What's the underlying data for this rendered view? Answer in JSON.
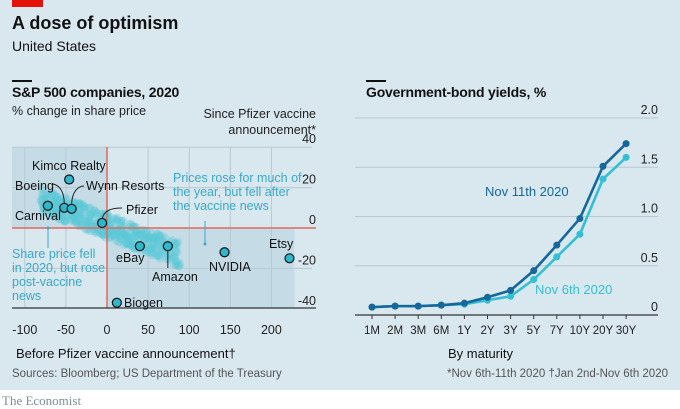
{
  "header": {
    "title": "A dose of optimism",
    "subtitle": "United States"
  },
  "footer": {
    "source": "Sources: Bloomberg; US Department of the Treasury",
    "footnote": "*Nov 6th-11th 2020   †Jan 2nd-Nov 6th 2020",
    "brand": "The Economist"
  },
  "colors": {
    "background": "#d9e7ef",
    "quadrant_shade": "#c5dce7",
    "cloud": "#5cc8d7",
    "highlight": "#2fb8cc",
    "zero_line": "#e0695e",
    "nov11": "#16679a",
    "nov6": "#34bfd2",
    "annotation": "#3aa9c7"
  },
  "chart_data": [
    {
      "type": "scatter",
      "title": "S&P 500 companies, 2020",
      "subtitle": "% change in share price",
      "xlabel": "Before Pfizer vaccine announcement†",
      "ylabel": "Since Pfizer vaccine announcement*",
      "xlim": [
        -110,
        230
      ],
      "ylim": [
        -43,
        40
      ],
      "xticks": [
        -100,
        -50,
        0,
        50,
        100,
        150,
        200
      ],
      "xtick_labels": [
        "-100",
        "-50",
        "0",
        "50",
        "100",
        "150",
        "200"
      ],
      "yticks": [
        40,
        20,
        0,
        -20,
        -40
      ],
      "ytick_labels": [
        "40",
        "20",
        "0",
        "-20",
        "-40"
      ],
      "grid": true,
      "highlighted_points": [
        {
          "name": "Kimco Realty",
          "x": -46,
          "y": 24
        },
        {
          "name": "Boeing",
          "x": -52,
          "y": 10
        },
        {
          "name": "Wynn Resorts",
          "x": -43,
          "y": 9.5
        },
        {
          "name": "Carnival",
          "x": -72,
          "y": 11
        },
        {
          "name": "Pfizer",
          "x": -6,
          "y": 2.5
        },
        {
          "name": "eBay",
          "x": 40,
          "y": -9
        },
        {
          "name": "Amazon",
          "x": 74,
          "y": -9
        },
        {
          "name": "NVIDIA",
          "x": 143,
          "y": -12
        },
        {
          "name": "Etsy",
          "x": 222,
          "y": -15
        },
        {
          "name": "Biogen",
          "x": 12,
          "y": -37
        }
      ],
      "annotations": [
        {
          "text": [
            "Prices rose for much of",
            "the year, but fell after",
            "the vaccine news"
          ]
        },
        {
          "text": [
            "Share price fell",
            "in 2020, but rose",
            "post-vaccine",
            "news"
          ]
        }
      ]
    },
    {
      "type": "line",
      "title": "Government-bond yields, %",
      "xlabel": "By maturity",
      "ylabel": "",
      "categories": [
        "1M",
        "2M",
        "3M",
        "6M",
        "1Y",
        "2Y",
        "3Y",
        "5Y",
        "7Y",
        "10Y",
        "20Y",
        "30Y"
      ],
      "ylim": [
        0,
        2.0
      ],
      "yticks": [
        0,
        0.5,
        1.0,
        1.5,
        2.0
      ],
      "ytick_labels": [
        "0",
        "0.5",
        "1.0",
        "1.5",
        "2.0"
      ],
      "grid": true,
      "series": [
        {
          "name": "Nov 11th 2020",
          "values": [
            0.08,
            0.09,
            0.09,
            0.1,
            0.12,
            0.18,
            0.25,
            0.45,
            0.71,
            0.98,
            1.51,
            1.74
          ]
        },
        {
          "name": "Nov 6th 2020",
          "values": [
            0.08,
            0.09,
            0.09,
            0.1,
            0.11,
            0.15,
            0.19,
            0.36,
            0.59,
            0.82,
            1.38,
            1.6
          ]
        }
      ]
    }
  ]
}
